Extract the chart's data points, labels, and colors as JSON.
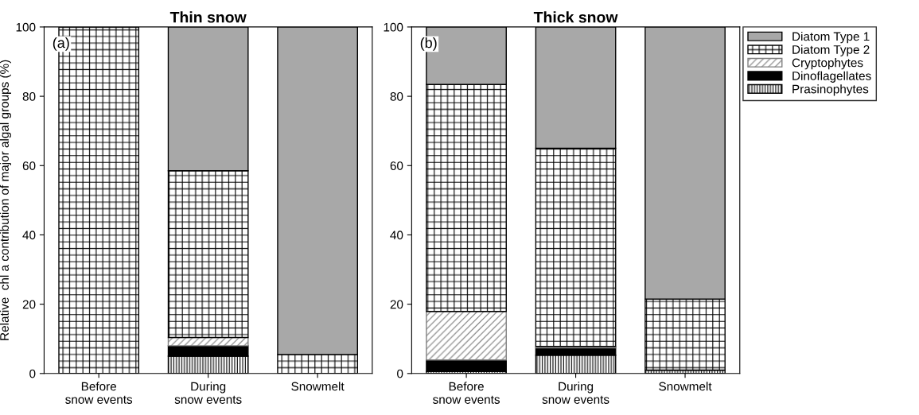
{
  "chart_data": [
    {
      "type": "bar",
      "title": "Thin snow",
      "ylabel": "Relative  chl a contribution of major algal groups (%)",
      "categories": [
        "Before\nsnow events",
        "During\nsnow events",
        "Snowmelt"
      ],
      "stacked": true,
      "ylim": [
        0,
        100
      ],
      "yticks": [
        0,
        20,
        40,
        60,
        80,
        100
      ],
      "annotations": [
        "(a)"
      ],
      "series": [
        {
          "color": "#000000",
          "values": [
            0,
            5,
            0
          ]
        },
        {
          "color": "#000000",
          "values": [
            0,
            3,
            0
          ]
        },
        {
          "color": "#808080",
          "values": [
            0,
            2.4,
            0
          ]
        },
        {
          "color": "#000000",
          "values": [
            100,
            48.1,
            5.5
          ]
        },
        {
          "color": "#a8a8a8",
          "values": [
            0,
            41.5,
            94.5
          ]
        }
      ]
    },
    {
      "type": "bar",
      "title": "Thick snow",
      "categories": [
        "Before\nsnow events",
        "During\nsnow events",
        "Snowmelt"
      ],
      "stacked": true,
      "ylim": [
        0,
        100
      ],
      "yticks": [
        0,
        20,
        40,
        60,
        80,
        100
      ],
      "annotations": [
        "(b)"
      ],
      "legend": "right",
      "series": [
        {
          "name": "Prasinophytes",
          "color": "#000000",
          "values": [
            0.6,
            5.3,
            1
          ]
        },
        {
          "name": "Dinoflagellates",
          "color": "#000000",
          "values": [
            3.3,
            2.1,
            0
          ]
        },
        {
          "name": "Cryptophytes",
          "color": "#808080",
          "values": [
            14,
            0.4,
            0
          ]
        },
        {
          "name": "Diatom Type 2",
          "color": "#000000",
          "values": [
            65.5,
            57.2,
            20.5
          ]
        },
        {
          "name": "Diatom Type 1",
          "color": "#a8a8a8",
          "values": [
            16.6,
            35,
            78.5
          ]
        }
      ]
    }
  ]
}
